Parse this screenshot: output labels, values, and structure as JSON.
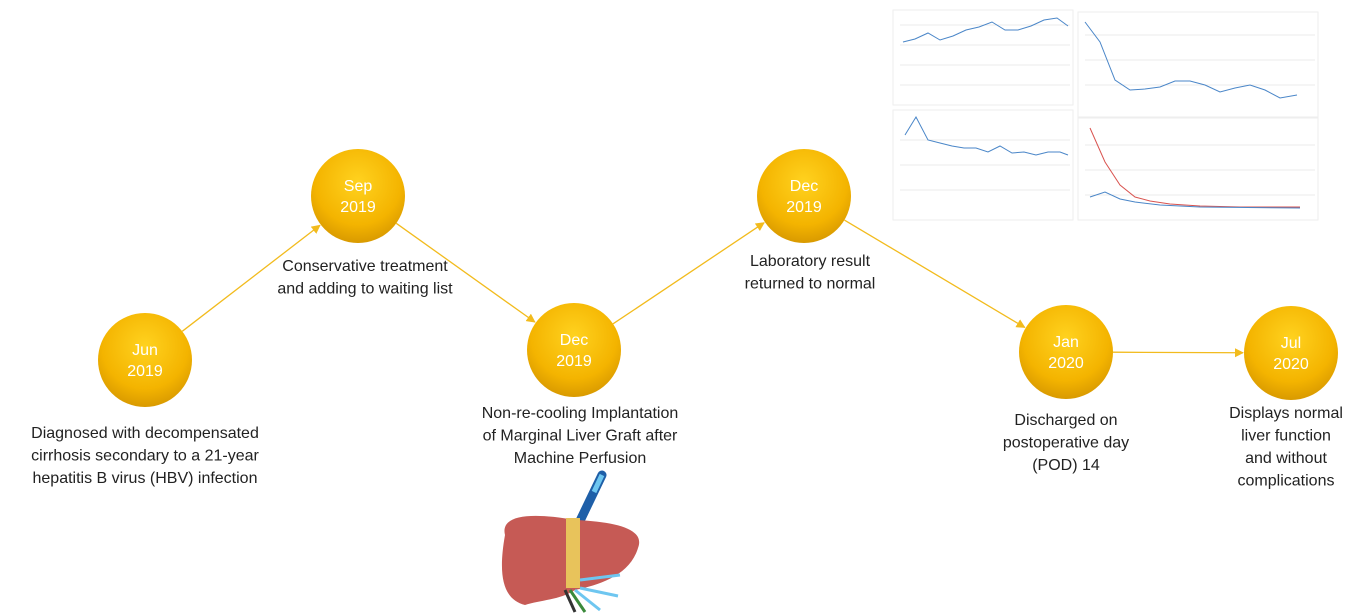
{
  "nodes": [
    {
      "month": "Jun",
      "year": "2019",
      "description": [
        "Diagnosed with decompensated",
        "cirrhosis secondary to a 21-year",
        "hepatitis B virus (HBV) infection"
      ]
    },
    {
      "month": "Sep",
      "year": "2019",
      "description": [
        "Conservative treatment",
        "and adding to waiting list"
      ]
    },
    {
      "month": "Dec",
      "year": "2019",
      "description": [
        "Non-re-cooling Implantation",
        "of Marginal Liver Graft after",
        "Machine Perfusion"
      ]
    },
    {
      "month": "Dec",
      "year": "2019",
      "description": [
        "Laboratory result",
        "returned to normal"
      ]
    },
    {
      "month": "Jan",
      "year": "2020",
      "description": [
        "Discharged on",
        "postoperative day",
        "(POD) 14"
      ]
    },
    {
      "month": "Jul",
      "year": "2020",
      "description": [
        "Displays normal",
        "liver function",
        "and without",
        "complications"
      ]
    }
  ]
}
